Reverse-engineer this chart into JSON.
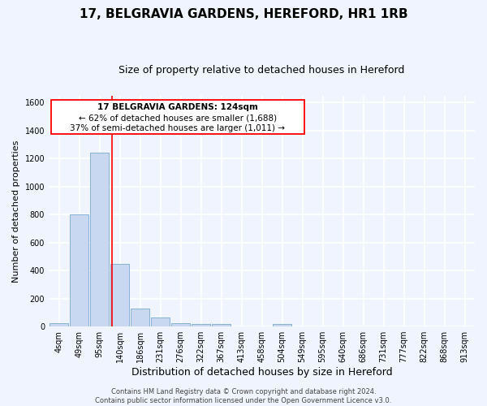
{
  "title": "17, BELGRAVIA GARDENS, HEREFORD, HR1 1RB",
  "subtitle": "Size of property relative to detached houses in Hereford",
  "xlabel": "Distribution of detached houses by size in Hereford",
  "ylabel": "Number of detached properties",
  "bar_labels": [
    "4sqm",
    "49sqm",
    "95sqm",
    "140sqm",
    "186sqm",
    "231sqm",
    "276sqm",
    "322sqm",
    "367sqm",
    "413sqm",
    "458sqm",
    "504sqm",
    "549sqm",
    "595sqm",
    "640sqm",
    "686sqm",
    "731sqm",
    "777sqm",
    "822sqm",
    "868sqm",
    "913sqm"
  ],
  "bar_values": [
    25,
    800,
    1240,
    450,
    130,
    65,
    25,
    15,
    15,
    0,
    0,
    15,
    0,
    0,
    0,
    0,
    0,
    0,
    0,
    0,
    0
  ],
  "bar_color": "#c8d8f0",
  "bar_edge_color": "#7aaad0",
  "vline_color": "red",
  "vline_position": 2.62,
  "annotation_text_line1": "17 BELGRAVIA GARDENS: 124sqm",
  "annotation_text_line2": "← 62% of detached houses are smaller (1,688)",
  "annotation_text_line3": "37% of semi-detached houses are larger (1,011) →",
  "footer_text": "Contains HM Land Registry data © Crown copyright and database right 2024.\nContains public sector information licensed under the Open Government Licence v3.0.",
  "ylim": [
    0,
    1650
  ],
  "yticks": [
    0,
    200,
    400,
    600,
    800,
    1000,
    1200,
    1400,
    1600
  ],
  "bg_color": "#f0f4ff",
  "plot_bg_color": "#f0f4ff",
  "grid_color": "white",
  "title_fontsize": 11,
  "subtitle_fontsize": 9,
  "ylabel_fontsize": 8,
  "xlabel_fontsize": 9,
  "tick_fontsize": 7,
  "annot_fontsize": 7.5,
  "footer_fontsize": 6
}
